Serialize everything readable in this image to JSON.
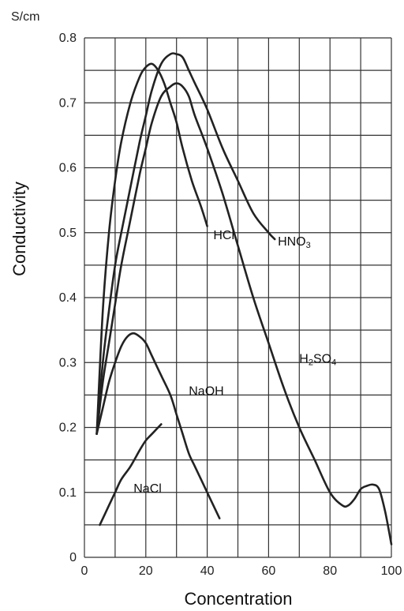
{
  "chart_data": {
    "type": "line",
    "unit_label": "S/cm",
    "xlabel": "Concentration",
    "ylabel": "Conductivity",
    "xlim": [
      0,
      100
    ],
    "ylim": [
      0,
      0.8
    ],
    "x_ticks": [
      "0",
      "20",
      "40",
      "60",
      "80",
      "100"
    ],
    "y_ticks": [
      "0",
      "0.1",
      "0.2",
      "0.3",
      "0.4",
      "0.5",
      "0.6",
      "0.7",
      "0.8"
    ],
    "grid": true,
    "series": [
      {
        "name": "HCl",
        "label_at": [
          42,
          0.49
        ],
        "x": [
          4,
          6,
          8,
          10,
          12,
          15,
          18,
          20,
          22,
          24,
          26,
          28,
          30,
          32,
          35,
          38,
          40
        ],
        "y": [
          0.19,
          0.38,
          0.5,
          0.58,
          0.64,
          0.7,
          0.74,
          0.755,
          0.76,
          0.75,
          0.73,
          0.7,
          0.67,
          0.63,
          0.58,
          0.54,
          0.51
        ]
      },
      {
        "name": "HNO3",
        "label_at": [
          63,
          0.48
        ],
        "x": [
          4,
          6,
          8,
          10,
          12,
          15,
          18,
          20,
          22,
          25,
          28,
          30,
          32,
          34,
          36,
          40,
          45,
          50,
          55,
          60,
          62
        ],
        "y": [
          0.19,
          0.3,
          0.38,
          0.45,
          0.5,
          0.57,
          0.64,
          0.68,
          0.72,
          0.76,
          0.775,
          0.775,
          0.77,
          0.75,
          0.73,
          0.69,
          0.63,
          0.58,
          0.53,
          0.5,
          0.49
        ]
      },
      {
        "name": "H2SO4",
        "label_at": [
          70,
          0.3
        ],
        "x": [
          4,
          6,
          8,
          10,
          12,
          15,
          18,
          20,
          22,
          25,
          28,
          30,
          32,
          34,
          36,
          40,
          45,
          50,
          55,
          60,
          65,
          70,
          75,
          80,
          84,
          86,
          88,
          90,
          92,
          94,
          96,
          98,
          100
        ],
        "y": [
          0.19,
          0.27,
          0.33,
          0.39,
          0.45,
          0.52,
          0.59,
          0.63,
          0.67,
          0.71,
          0.725,
          0.73,
          0.725,
          0.71,
          0.68,
          0.63,
          0.56,
          0.48,
          0.4,
          0.33,
          0.26,
          0.2,
          0.15,
          0.1,
          0.08,
          0.08,
          0.09,
          0.105,
          0.11,
          0.112,
          0.105,
          0.07,
          0.02
        ]
      },
      {
        "name": "NaOH",
        "label_at": [
          34,
          0.25
        ],
        "x": [
          4,
          6,
          8,
          10,
          12,
          14,
          16,
          18,
          20,
          22,
          25,
          28,
          30,
          32,
          34,
          36,
          38,
          40,
          42,
          44
        ],
        "y": [
          0.19,
          0.23,
          0.27,
          0.3,
          0.325,
          0.34,
          0.345,
          0.34,
          0.33,
          0.31,
          0.28,
          0.25,
          0.22,
          0.19,
          0.16,
          0.14,
          0.12,
          0.1,
          0.08,
          0.06
        ]
      },
      {
        "name": "NaCl",
        "label_at": [
          16,
          0.1
        ],
        "x": [
          5,
          8,
          10,
          12,
          15,
          18,
          20,
          22,
          25
        ],
        "y": [
          0.05,
          0.08,
          0.1,
          0.12,
          0.14,
          0.165,
          0.18,
          0.19,
          0.205
        ]
      }
    ],
    "labels": {
      "HCl": {
        "main": "HCl"
      },
      "HNO3": {
        "main": "HNO",
        "sub": "3"
      },
      "H2SO4": {
        "parts": [
          [
            "H",
            false
          ],
          [
            "2",
            true
          ],
          [
            "SO",
            false
          ],
          [
            "4",
            true
          ]
        ]
      },
      "NaOH": {
        "main": "NaOH"
      },
      "NaCl": {
        "main": "NaCl"
      }
    }
  }
}
